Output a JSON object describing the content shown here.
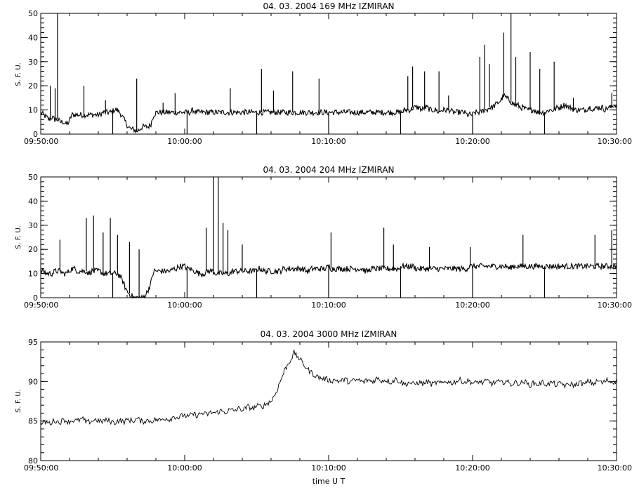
{
  "figure": {
    "xlabel": "time U T"
  },
  "chart_data": [
    {
      "type": "line",
      "title": "04.  03.  2004    169 MHz    IZMIRAN",
      "ylabel": "S. F. U.",
      "xlim": [
        "09:50:00",
        "10:30:00"
      ],
      "ylim": [
        0,
        50
      ],
      "x_ticks": [
        "09:50:00",
        "10:00:00",
        "10:10:00",
        "10:20:00",
        "10:30:00"
      ],
      "y_ticks": [
        "0",
        "10",
        "20",
        "30",
        "40",
        "50"
      ],
      "series": [
        {
          "values": [
            9,
            8,
            7,
            6,
            7,
            6,
            6,
            5,
            5,
            4,
            5,
            8,
            8,
            8,
            8,
            8,
            8,
            8,
            8,
            8,
            8,
            8,
            9,
            9,
            9,
            9,
            10,
            10,
            9,
            7,
            5,
            3,
            2,
            2,
            1,
            2,
            3,
            3,
            3,
            4,
            8,
            9,
            9,
            9,
            9,
            9,
            9,
            9,
            9,
            9,
            9,
            9,
            9,
            9,
            10,
            9,
            9,
            9,
            9,
            9,
            9,
            9,
            9,
            9,
            9,
            9,
            9,
            9,
            9,
            9,
            9,
            9,
            9,
            9,
            9,
            9,
            9,
            9,
            9,
            9,
            9,
            9,
            9,
            9,
            9,
            9,
            9,
            9,
            9,
            9,
            9,
            9,
            9,
            9,
            9,
            9,
            9,
            9,
            9,
            9,
            9,
            9,
            9,
            9,
            9,
            9,
            9,
            9,
            9,
            9,
            9,
            9,
            9,
            9,
            9,
            9,
            9,
            9,
            9,
            9,
            9,
            9,
            9,
            9,
            9,
            9,
            9,
            9,
            9,
            10,
            10,
            10,
            11,
            11,
            11,
            10,
            11,
            11,
            10,
            10,
            10,
            9,
            10,
            10,
            10,
            10,
            9,
            9,
            9,
            9,
            9,
            8,
            8,
            8,
            9,
            9,
            9,
            10,
            10,
            11,
            11,
            12,
            13,
            14,
            16,
            15,
            14,
            13,
            12,
            12,
            11,
            11,
            10,
            10,
            10,
            10,
            9,
            9,
            9,
            9,
            10,
            10,
            10,
            11,
            11,
            12,
            12,
            11,
            11,
            10,
            10,
            10,
            10,
            10,
            11,
            11,
            10,
            11,
            11,
            11,
            10,
            11,
            11,
            12,
            12
          ]
        }
      ],
      "spikes": [
        {
          "x": "09:51:10",
          "y": 50
        },
        {
          "x": "09:50:40",
          "y": 20
        },
        {
          "x": "09:51:00",
          "y": 19
        },
        {
          "x": "09:53:00",
          "y": 20
        },
        {
          "x": "09:54:30",
          "y": 14
        },
        {
          "x": "09:56:40",
          "y": 23
        },
        {
          "x": "09:58:30",
          "y": 13
        },
        {
          "x": "09:59:20",
          "y": 17
        },
        {
          "x": "10:03:10",
          "y": 19
        },
        {
          "x": "10:05:20",
          "y": 27
        },
        {
          "x": "10:06:10",
          "y": 18
        },
        {
          "x": "10:07:30",
          "y": 26
        },
        {
          "x": "10:09:20",
          "y": 23
        },
        {
          "x": "10:15:30",
          "y": 24
        },
        {
          "x": "10:15:50",
          "y": 28
        },
        {
          "x": "10:16:40",
          "y": 26
        },
        {
          "x": "10:17:40",
          "y": 26
        },
        {
          "x": "10:18:20",
          "y": 16
        },
        {
          "x": "10:20:30",
          "y": 32
        },
        {
          "x": "10:20:50",
          "y": 37
        },
        {
          "x": "10:21:10",
          "y": 29
        },
        {
          "x": "10:22:10",
          "y": 42
        },
        {
          "x": "10:22:40",
          "y": 50
        },
        {
          "x": "10:23:00",
          "y": 32
        },
        {
          "x": "10:24:00",
          "y": 34
        },
        {
          "x": "10:24:40",
          "y": 27
        },
        {
          "x": "10:25:40",
          "y": 30
        },
        {
          "x": "10:27:00",
          "y": 15
        },
        {
          "x": "10:29:40",
          "y": 17
        }
      ],
      "dips": [
        "09:55:00",
        "10:00:10",
        "10:05:00",
        "10:10:00",
        "10:15:00",
        "10:20:00",
        "10:25:00"
      ]
    },
    {
      "type": "line",
      "title": "04.  03.  2004    204 MHz    IZMIRAN",
      "ylabel": "S. F. U.",
      "xlim": [
        "09:50:00",
        "10:30:00"
      ],
      "ylim": [
        0,
        50
      ],
      "x_ticks": [
        "09:50:00",
        "10:00:00",
        "10:10:00",
        "10:20:00",
        "10:30:00"
      ],
      "y_ticks": [
        "0",
        "10",
        "20",
        "30",
        "40",
        "50"
      ],
      "series": [
        {
          "values": [
            11,
            11,
            10,
            10,
            10,
            11,
            11,
            11,
            10,
            10,
            11,
            12,
            12,
            11,
            11,
            11,
            11,
            10,
            11,
            11,
            11,
            11,
            10,
            10,
            10,
            10,
            10,
            10,
            9,
            7,
            4,
            2,
            1,
            0,
            0,
            0,
            0,
            1,
            3,
            6,
            11,
            11,
            11,
            11,
            11,
            11,
            11,
            12,
            12,
            13,
            13,
            13,
            12,
            12,
            11,
            11,
            10,
            10,
            10,
            11,
            11,
            11,
            10,
            10,
            10,
            10,
            10,
            10,
            11,
            11,
            11,
            11,
            11,
            11,
            11,
            11,
            11,
            12,
            12,
            11,
            11,
            11,
            11,
            11,
            11,
            11,
            12,
            12,
            12,
            12,
            12,
            12,
            12,
            12,
            11,
            11,
            12,
            12,
            12,
            12,
            12,
            12,
            13,
            12,
            12,
            12,
            12,
            12,
            12,
            12,
            12,
            12,
            12,
            12,
            12,
            11,
            11,
            12,
            12,
            12,
            12,
            12,
            12,
            12,
            12,
            12,
            12,
            12,
            13,
            13,
            13,
            13,
            13,
            12,
            12,
            12,
            12,
            12,
            12,
            12,
            12,
            12,
            12,
            12,
            12,
            12,
            12,
            12,
            12,
            12,
            12,
            12,
            13,
            13,
            13,
            13,
            13,
            13,
            13,
            13,
            13,
            13,
            13,
            13,
            13,
            13,
            12,
            13,
            13,
            13,
            13,
            13,
            13,
            13,
            13,
            13,
            13,
            13,
            13,
            13,
            13,
            13,
            13,
            13,
            13,
            13,
            13,
            13,
            13,
            13,
            13,
            13,
            13,
            13,
            13,
            13,
            13,
            13,
            13,
            13,
            13,
            13,
            13,
            13,
            13
          ]
        }
      ],
      "spikes": [
        {
          "x": "09:51:20",
          "y": 24
        },
        {
          "x": "09:53:10",
          "y": 33
        },
        {
          "x": "09:53:40",
          "y": 34
        },
        {
          "x": "09:54:20",
          "y": 27
        },
        {
          "x": "09:54:50",
          "y": 33
        },
        {
          "x": "09:55:20",
          "y": 26
        },
        {
          "x": "09:56:10",
          "y": 23
        },
        {
          "x": "09:56:50",
          "y": 20
        },
        {
          "x": "10:01:30",
          "y": 29
        },
        {
          "x": "10:02:00",
          "y": 50
        },
        {
          "x": "10:02:20",
          "y": 50
        },
        {
          "x": "10:02:40",
          "y": 31
        },
        {
          "x": "10:03:00",
          "y": 28
        },
        {
          "x": "10:04:00",
          "y": 22
        },
        {
          "x": "10:10:10",
          "y": 27
        },
        {
          "x": "10:13:50",
          "y": 29
        },
        {
          "x": "10:14:30",
          "y": 22
        },
        {
          "x": "10:17:00",
          "y": 21
        },
        {
          "x": "10:19:50",
          "y": 21
        },
        {
          "x": "10:23:30",
          "y": 26
        },
        {
          "x": "10:28:30",
          "y": 26
        },
        {
          "x": "10:29:40",
          "y": 28
        }
      ],
      "dips": [
        "09:55:00",
        "10:00:10",
        "10:05:00",
        "10:10:00",
        "10:15:00",
        "10:20:00",
        "10:25:00"
      ]
    },
    {
      "type": "line",
      "title": "04.  03.  2004    3000 MHz    IZMIRAN",
      "ylabel": "S. F. U.",
      "xlim": [
        "09:50:00",
        "10:30:00"
      ],
      "ylim": [
        80,
        95
      ],
      "x_ticks": [
        "09:50:00",
        "10:00:00",
        "10:10:00",
        "10:20:00",
        "10:30:00"
      ],
      "y_ticks": [
        "80",
        "85",
        "90",
        "95"
      ],
      "series": [
        {
          "values": [
            84.6,
            84.9,
            84.7,
            85.1,
            84.8,
            85.2,
            84.9,
            85.1,
            85.0,
            85.3,
            84.8,
            85.0,
            85.2,
            84.9,
            85.1,
            85.0,
            84.8,
            85.1,
            84.9,
            85.2,
            85.0,
            85.3,
            84.9,
            85.1,
            85.0,
            85.2,
            85.1,
            85.4,
            85.2,
            85.6,
            85.4,
            85.8,
            85.5,
            85.9,
            85.7,
            86.0,
            85.8,
            86.1,
            86.0,
            86.3,
            86.1,
            86.4,
            86.3,
            86.6,
            86.4,
            86.8,
            86.6,
            86.9,
            86.8,
            87.2,
            87.5,
            88.5,
            90.0,
            91.5,
            92.5,
            93.6,
            93.0,
            92.2,
            91.5,
            91.0,
            90.6,
            90.4,
            90.3,
            90.1,
            90.2,
            90.0,
            90.3,
            89.9,
            90.1,
            90.2,
            89.9,
            90.2,
            90.0,
            90.4,
            90.1,
            90.2,
            89.9,
            90.3,
            90.0,
            89.6,
            89.9,
            89.6,
            89.9,
            89.7,
            90.0,
            89.6,
            89.9,
            89.7,
            90.1,
            89.8,
            90.0,
            90.2,
            89.9,
            90.1,
            89.7,
            90.0,
            89.8,
            90.1,
            89.7,
            90.0,
            89.8,
            90.1,
            89.6,
            89.9,
            89.7,
            90.0,
            89.5,
            89.8,
            89.6,
            89.9,
            89.6,
            89.9,
            89.5,
            89.8,
            89.4,
            89.7,
            89.5,
            89.9,
            89.6,
            90.1,
            89.7,
            90.1,
            89.8,
            90.2,
            89.9,
            90.1
          ]
        }
      ]
    }
  ]
}
